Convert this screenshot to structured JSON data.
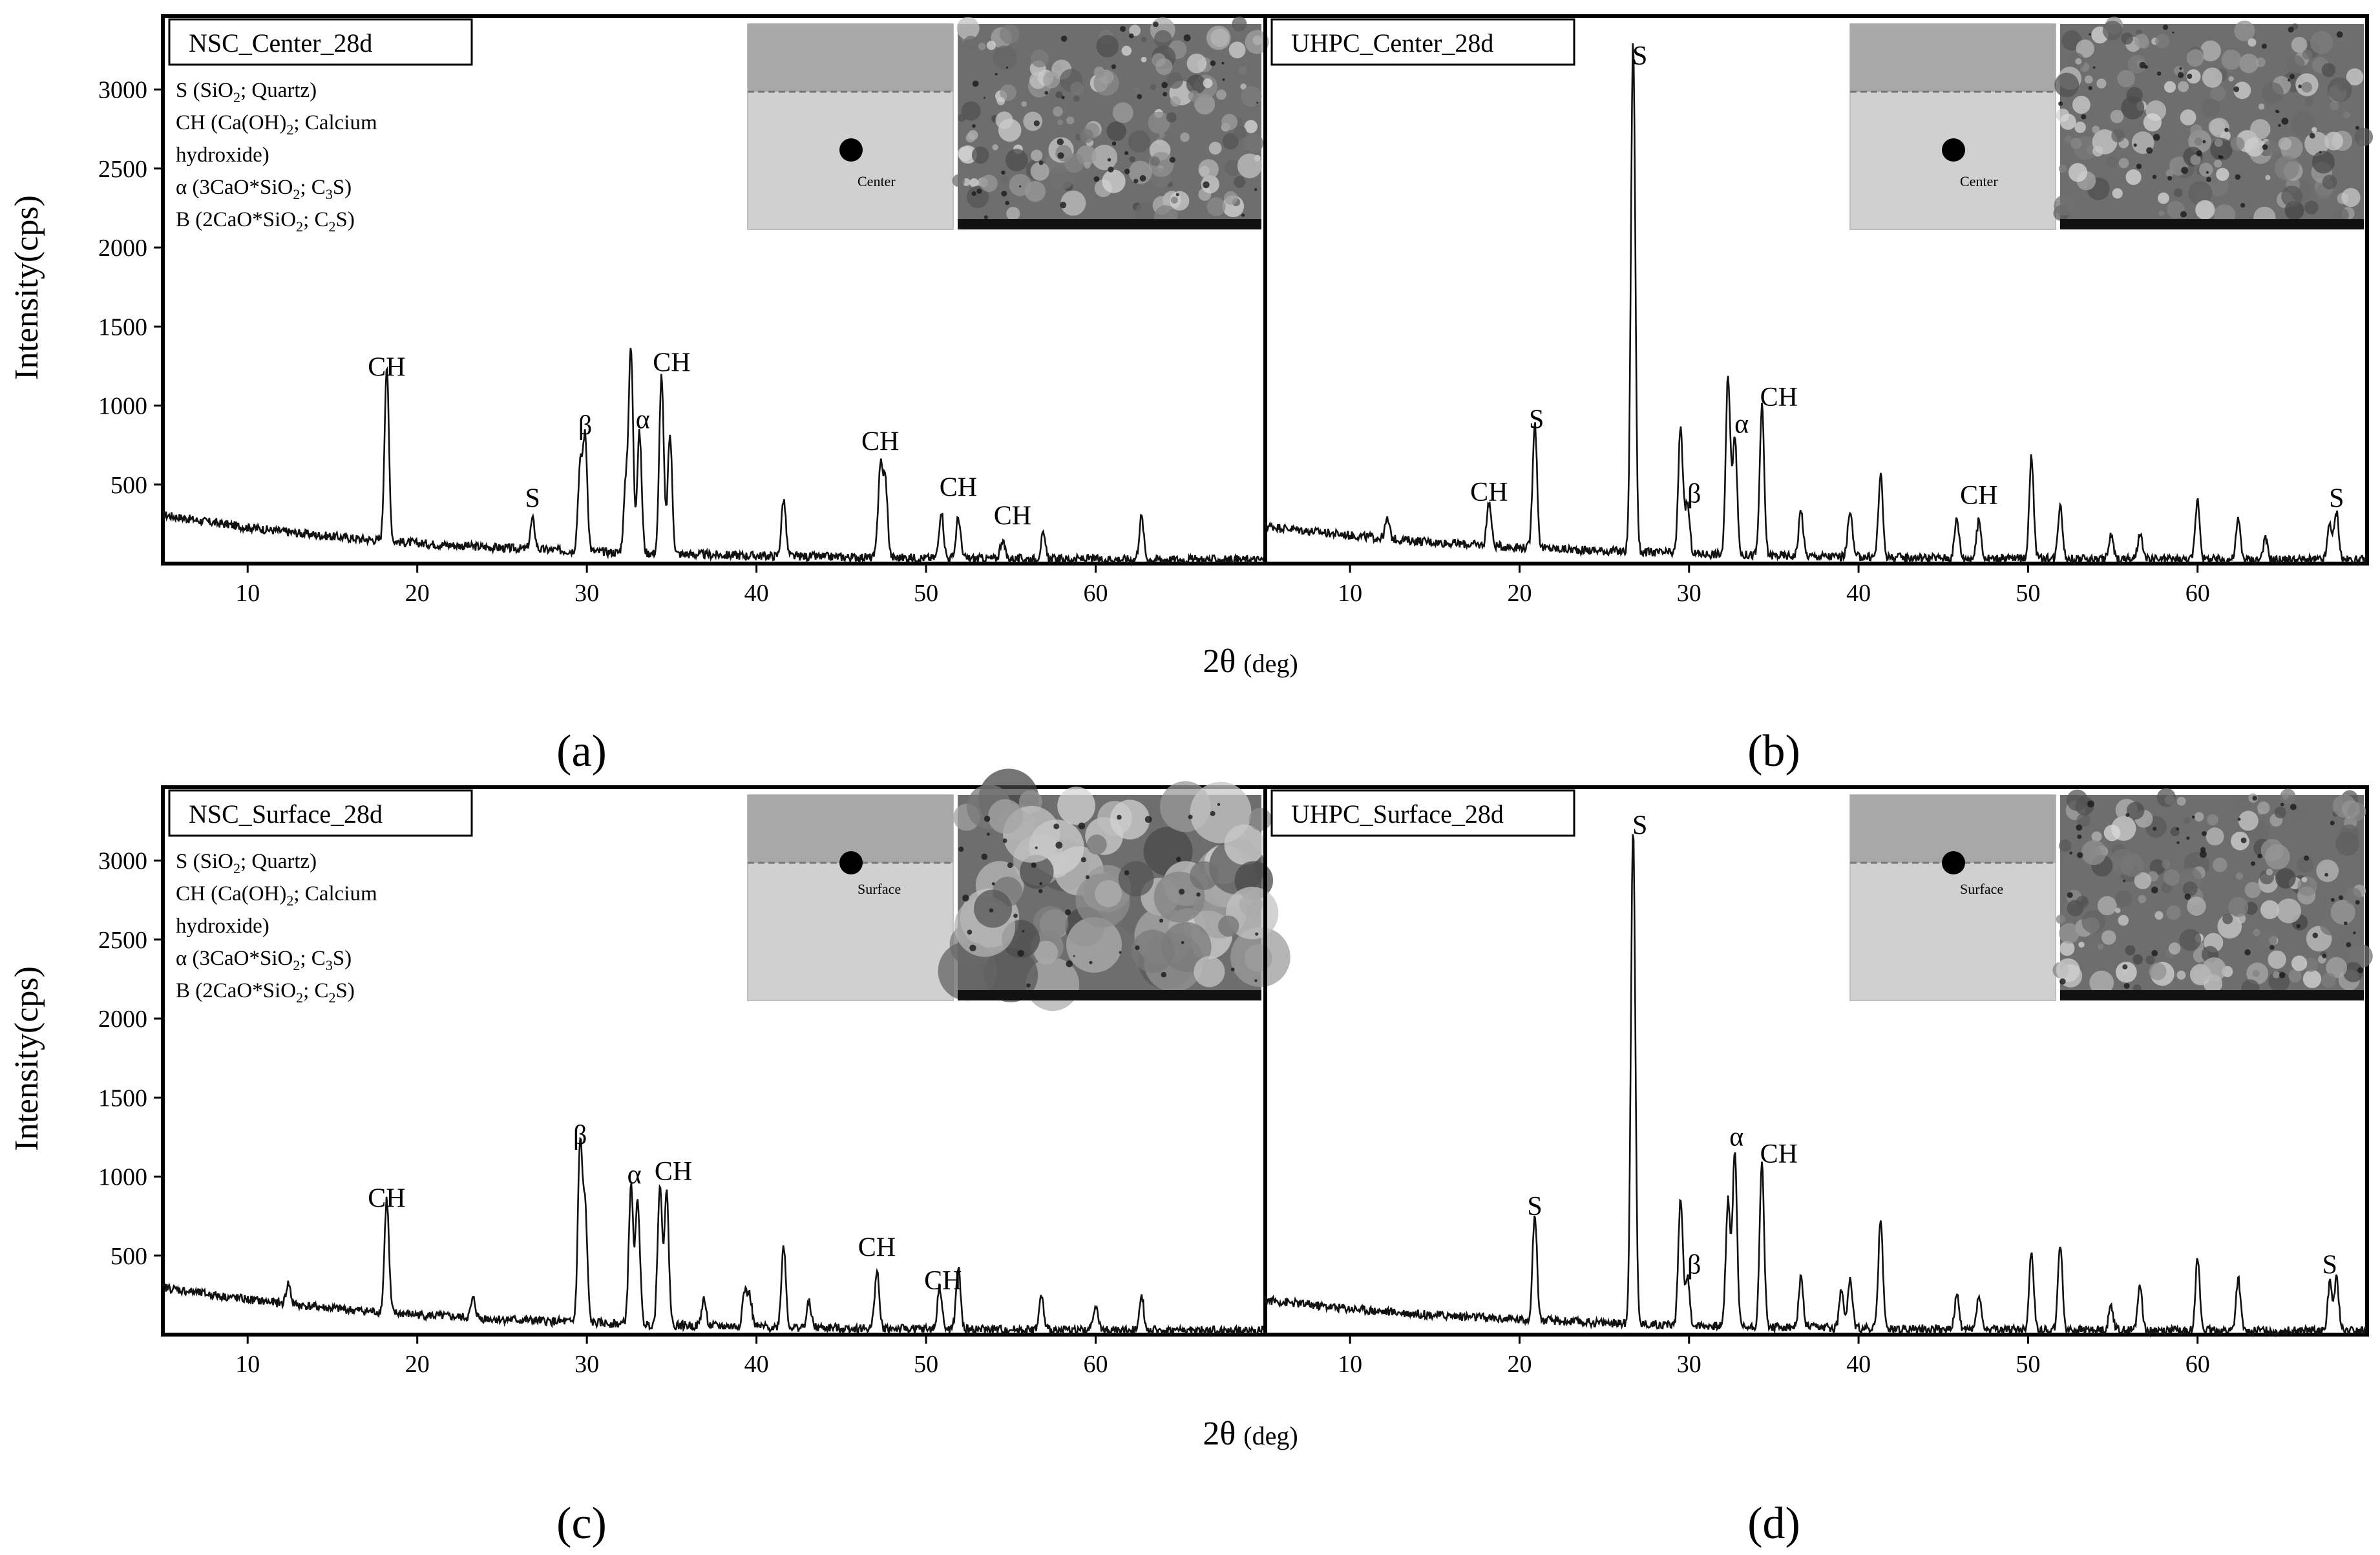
{
  "figure": {
    "ylabel": "Intensity(cps)",
    "xlabel_main": "2θ",
    "xlabel_unit": "(deg)"
  },
  "chart_data": [
    {
      "type": "line",
      "panel": "(a)",
      "title": "NSC_Center_28d",
      "xlabel": "2θ (deg)",
      "ylabel": "Intensity(cps)",
      "xlim": [
        5,
        70
      ],
      "ylim": [
        0,
        3300
      ],
      "xticks": [
        10,
        20,
        30,
        40,
        50,
        60
      ],
      "yticks": [
        500,
        1000,
        1500,
        2000,
        2500,
        3000
      ],
      "legend": [
        {
          "base": "S (SiO",
          "sub": "2",
          "rest": "; Quartz)"
        },
        {
          "base": "CH (Ca(OH)",
          "sub": "2",
          "rest": "; Calcium"
        },
        {
          "base": "hydroxide)",
          "sub": "",
          "rest": ""
        },
        {
          "base": "α (3CaO*SiO",
          "sub": "2",
          "rest": "; C",
          "sub2": "3",
          "rest2": "S)"
        },
        {
          "base": "Β (2CaO*SiO",
          "sub": "2",
          "rest": "; C",
          "sub2": "2",
          "rest2": "S)"
        }
      ],
      "inset": {
        "location": "Center"
      },
      "baseline": {
        "start": 310,
        "end": 20
      },
      "peaks": [
        {
          "x": 18.2,
          "y": 1100
        },
        {
          "x": 26.8,
          "y": 190
        },
        {
          "x": 29.6,
          "y": 520
        },
        {
          "x": 29.9,
          "y": 710
        },
        {
          "x": 32.3,
          "y": 420
        },
        {
          "x": 32.6,
          "y": 1270
        },
        {
          "x": 33.1,
          "y": 760
        },
        {
          "x": 34.4,
          "y": 1130
        },
        {
          "x": 34.9,
          "y": 750
        },
        {
          "x": 41.6,
          "y": 360
        },
        {
          "x": 47.3,
          "y": 570
        },
        {
          "x": 47.6,
          "y": 480
        },
        {
          "x": 50.9,
          "y": 300
        },
        {
          "x": 51.9,
          "y": 260
        },
        {
          "x": 54.5,
          "y": 120
        },
        {
          "x": 56.9,
          "y": 150
        },
        {
          "x": 62.7,
          "y": 270
        }
      ],
      "annotations": [
        {
          "text": "CH",
          "x": 18.2,
          "y": 1130
        },
        {
          "text": "S",
          "x": 26.8,
          "y": 300
        },
        {
          "text": "β",
          "x": 29.9,
          "y": 760
        },
        {
          "text": "α",
          "x": 33.3,
          "y": 800
        },
        {
          "text": "CH",
          "x": 35.0,
          "y": 1160
        },
        {
          "text": "CH",
          "x": 47.3,
          "y": 660
        },
        {
          "text": "CH",
          "x": 51.9,
          "y": 370
        },
        {
          "text": "CH",
          "x": 55.1,
          "y": 190
        }
      ]
    },
    {
      "type": "line",
      "panel": "(b)",
      "title": "UHPC_Center_28d",
      "xlabel": "2θ (deg)",
      "ylabel": "Intensity(cps)",
      "xlim": [
        5,
        70
      ],
      "ylim": [
        0,
        3300
      ],
      "xticks": [
        10,
        20,
        30,
        40,
        50,
        60
      ],
      "yticks": [],
      "inset": {
        "location": "Center"
      },
      "baseline": {
        "start": 240,
        "end": 20
      },
      "peaks": [
        {
          "x": 12.2,
          "y": 120
        },
        {
          "x": 18.2,
          "y": 280
        },
        {
          "x": 20.9,
          "y": 800
        },
        {
          "x": 26.7,
          "y": 3230
        },
        {
          "x": 29.5,
          "y": 810
        },
        {
          "x": 29.9,
          "y": 320
        },
        {
          "x": 32.3,
          "y": 1130
        },
        {
          "x": 32.7,
          "y": 760
        },
        {
          "x": 34.3,
          "y": 940
        },
        {
          "x": 36.6,
          "y": 290
        },
        {
          "x": 39.5,
          "y": 300
        },
        {
          "x": 41.3,
          "y": 520
        },
        {
          "x": 45.8,
          "y": 250
        },
        {
          "x": 47.1,
          "y": 240
        },
        {
          "x": 50.2,
          "y": 650
        },
        {
          "x": 51.9,
          "y": 350
        },
        {
          "x": 54.9,
          "y": 150
        },
        {
          "x": 56.6,
          "y": 160
        },
        {
          "x": 60.0,
          "y": 380
        },
        {
          "x": 62.4,
          "y": 250
        },
        {
          "x": 64.0,
          "y": 130
        },
        {
          "x": 67.8,
          "y": 230
        },
        {
          "x": 68.2,
          "y": 300
        }
      ],
      "annotations": [
        {
          "text": "S",
          "x": 27.1,
          "y": 3100
        },
        {
          "text": "CH",
          "x": 18.2,
          "y": 340
        },
        {
          "text": "S",
          "x": 21.0,
          "y": 800
        },
        {
          "text": "β",
          "x": 30.3,
          "y": 330
        },
        {
          "text": "α",
          "x": 33.1,
          "y": 770
        },
        {
          "text": "CH",
          "x": 35.3,
          "y": 940
        },
        {
          "text": "CH",
          "x": 47.1,
          "y": 320
        },
        {
          "text": "S",
          "x": 68.2,
          "y": 300
        }
      ]
    },
    {
      "type": "line",
      "panel": "(c)",
      "title": "NSC_Surface_28d",
      "xlabel": "2θ (deg)",
      "ylabel": "Intensity(cps)",
      "xlim": [
        5,
        70
      ],
      "ylim": [
        0,
        3300
      ],
      "xticks": [
        10,
        20,
        30,
        40,
        50,
        60
      ],
      "yticks": [
        500,
        1000,
        1500,
        2000,
        2500,
        3000
      ],
      "legend": [
        {
          "base": "S (SiO",
          "sub": "2",
          "rest": "; Quartz)"
        },
        {
          "base": "CH (Ca(OH)",
          "sub": "2",
          "rest": "; Calcium"
        },
        {
          "base": "hydroxide)",
          "sub": "",
          "rest": ""
        },
        {
          "base": "α (3CaO*SiO",
          "sub": "2",
          "rest": "; C",
          "sub2": "3",
          "rest2": "S)"
        },
        {
          "base": "Β (2CaO*SiO",
          "sub": "2",
          "rest": "; C",
          "sub2": "2",
          "rest2": "S)"
        }
      ],
      "inset": {
        "location": "Surface"
      },
      "baseline": {
        "start": 300,
        "end": 20
      },
      "peaks": [
        {
          "x": 12.4,
          "y": 130
        },
        {
          "x": 18.2,
          "y": 720
        },
        {
          "x": 23.3,
          "y": 120
        },
        {
          "x": 29.6,
          "y": 1120
        },
        {
          "x": 29.9,
          "y": 700
        },
        {
          "x": 32.6,
          "y": 870
        },
        {
          "x": 33.0,
          "y": 780
        },
        {
          "x": 34.3,
          "y": 880
        },
        {
          "x": 34.7,
          "y": 840
        },
        {
          "x": 36.9,
          "y": 170
        },
        {
          "x": 39.3,
          "y": 220
        },
        {
          "x": 39.6,
          "y": 190
        },
        {
          "x": 41.6,
          "y": 520
        },
        {
          "x": 43.1,
          "y": 160
        },
        {
          "x": 47.1,
          "y": 370
        },
        {
          "x": 50.8,
          "y": 270
        },
        {
          "x": 51.9,
          "y": 390
        },
        {
          "x": 56.8,
          "y": 210
        },
        {
          "x": 60.0,
          "y": 170
        },
        {
          "x": 62.7,
          "y": 230
        }
      ],
      "annotations": [
        {
          "text": "CH",
          "x": 18.2,
          "y": 750
        },
        {
          "text": "β",
          "x": 29.6,
          "y": 1150
        },
        {
          "text": "α",
          "x": 32.8,
          "y": 900
        },
        {
          "text": "CH",
          "x": 35.1,
          "y": 920
        },
        {
          "text": "CH",
          "x": 47.1,
          "y": 440
        },
        {
          "text": "CH",
          "x": 51.0,
          "y": 230
        }
      ]
    },
    {
      "type": "line",
      "panel": "(d)",
      "title": "UHPC_Surface_28d",
      "xlabel": "2θ (deg)",
      "ylabel": "Intensity(cps)",
      "xlim": [
        5,
        70
      ],
      "ylim": [
        0,
        3300
      ],
      "xticks": [
        10,
        20,
        30,
        40,
        50,
        60
      ],
      "yticks": [],
      "inset": {
        "location": "Surface"
      },
      "baseline": {
        "start": 220,
        "end": 20
      },
      "peaks": [
        {
          "x": 20.9,
          "y": 670
        },
        {
          "x": 26.7,
          "y": 3150
        },
        {
          "x": 29.5,
          "y": 810
        },
        {
          "x": 29.9,
          "y": 300
        },
        {
          "x": 32.3,
          "y": 800
        },
        {
          "x": 32.7,
          "y": 1110
        },
        {
          "x": 34.3,
          "y": 1040
        },
        {
          "x": 36.6,
          "y": 310
        },
        {
          "x": 39.0,
          "y": 250
        },
        {
          "x": 39.5,
          "y": 320
        },
        {
          "x": 41.3,
          "y": 690
        },
        {
          "x": 45.8,
          "y": 210
        },
        {
          "x": 47.1,
          "y": 220
        },
        {
          "x": 50.2,
          "y": 500
        },
        {
          "x": 51.9,
          "y": 540
        },
        {
          "x": 54.9,
          "y": 160
        },
        {
          "x": 56.6,
          "y": 300
        },
        {
          "x": 60.0,
          "y": 450
        },
        {
          "x": 62.4,
          "y": 330
        },
        {
          "x": 67.8,
          "y": 300
        },
        {
          "x": 68.2,
          "y": 330
        }
      ],
      "annotations": [
        {
          "text": "S",
          "x": 27.1,
          "y": 3110
        },
        {
          "text": "S",
          "x": 20.9,
          "y": 700
        },
        {
          "text": "β",
          "x": 30.3,
          "y": 330
        },
        {
          "text": "α",
          "x": 32.8,
          "y": 1140
        },
        {
          "text": "CH",
          "x": 35.3,
          "y": 1030
        },
        {
          "text": "S",
          "x": 67.8,
          "y": 330
        }
      ]
    }
  ]
}
